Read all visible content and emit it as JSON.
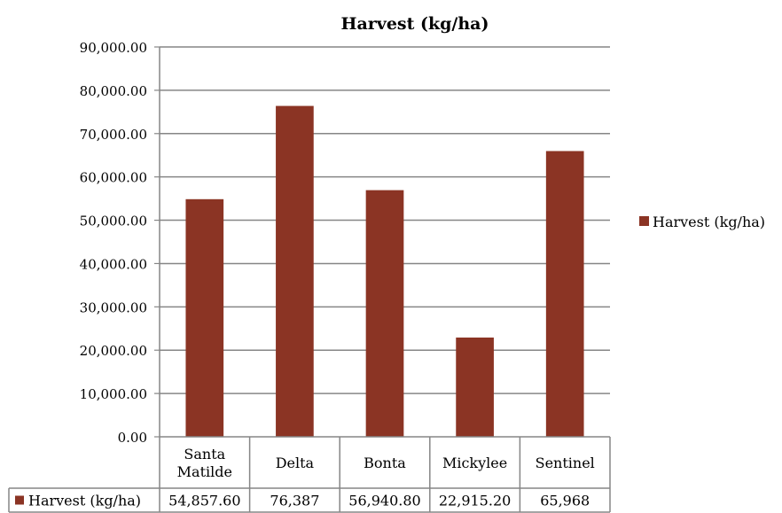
{
  "chart_data": {
    "type": "bar",
    "title": "Harvest (kg/ha)",
    "xlabel": "",
    "ylabel": "",
    "categories": [
      [
        "Santa",
        "Matilde"
      ],
      [
        "Delta"
      ],
      [
        "Bonta"
      ],
      [
        "Mickylee"
      ],
      [
        "Sentinel"
      ]
    ],
    "series": [
      {
        "name": "Harvest (kg/ha)",
        "color": "#8B3424",
        "values": [
          54857.6,
          76387,
          56940.8,
          22915.2,
          65968
        ],
        "table_values": [
          "54,857.60",
          "76,387",
          "56,940.80",
          "22,915.20",
          "65,968"
        ]
      }
    ],
    "ylim": [
      0,
      90000
    ],
    "ytick_labels": [
      "0.00",
      "10,000.00",
      "20,000.00",
      "30,000.00",
      "40,000.00",
      "50,000.00",
      "60,000.00",
      "70,000.00",
      "80,000.00",
      "90,000.00"
    ],
    "grid": true,
    "legend_position": "right",
    "data_table": true
  }
}
